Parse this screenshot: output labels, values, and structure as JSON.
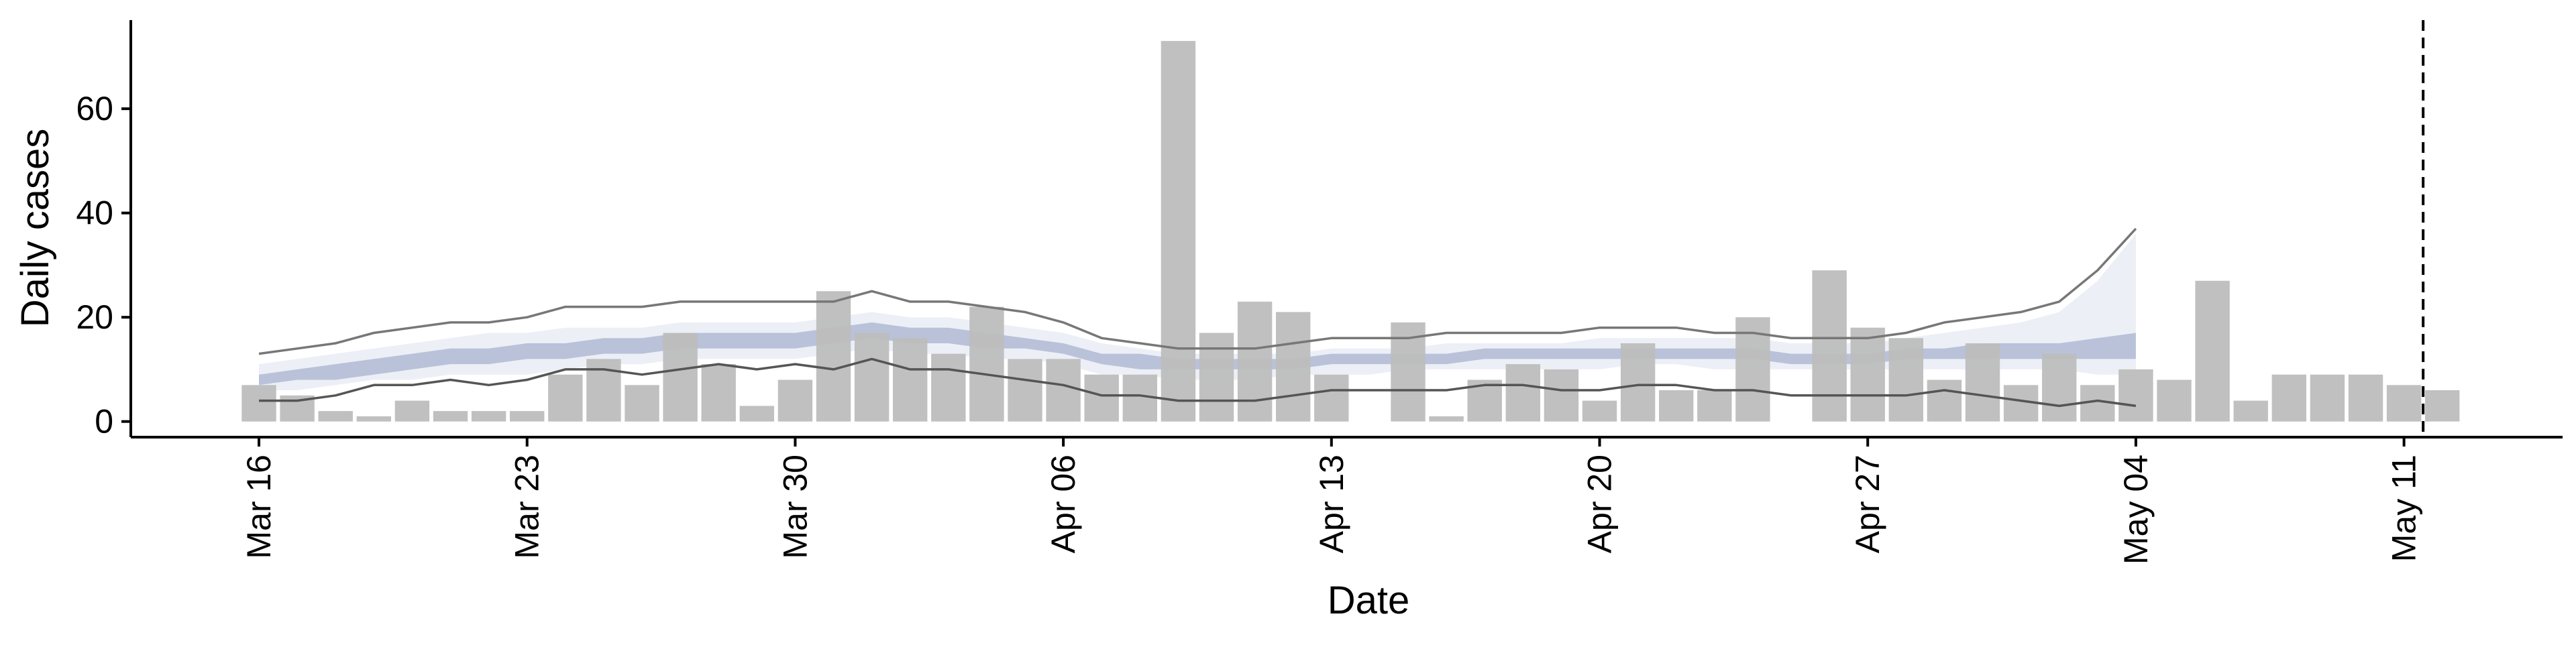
{
  "chart_data": {
    "type": "bar",
    "xlabel": "Date",
    "ylabel": "Daily cases",
    "ylim": [
      -3,
      77
    ],
    "yticks": [
      0,
      20,
      40,
      60
    ],
    "x_dates": [
      "2020-03-16",
      "2020-03-17",
      "2020-03-18",
      "2020-03-19",
      "2020-03-20",
      "2020-03-21",
      "2020-03-22",
      "2020-03-23",
      "2020-03-24",
      "2020-03-25",
      "2020-03-26",
      "2020-03-27",
      "2020-03-28",
      "2020-03-29",
      "2020-03-30",
      "2020-03-31",
      "2020-04-01",
      "2020-04-02",
      "2020-04-03",
      "2020-04-04",
      "2020-04-05",
      "2020-04-06",
      "2020-04-07",
      "2020-04-08",
      "2020-04-09",
      "2020-04-10",
      "2020-04-11",
      "2020-04-12",
      "2020-04-13",
      "2020-04-14",
      "2020-04-15",
      "2020-04-16",
      "2020-04-17",
      "2020-04-18",
      "2020-04-19",
      "2020-04-20",
      "2020-04-21",
      "2020-04-22",
      "2020-04-23",
      "2020-04-24",
      "2020-04-25",
      "2020-04-26",
      "2020-04-27",
      "2020-04-28",
      "2020-04-29",
      "2020-04-30",
      "2020-05-01",
      "2020-05-02",
      "2020-05-03",
      "2020-05-04",
      "2020-05-05",
      "2020-05-06",
      "2020-05-07",
      "2020-05-08",
      "2020-05-09",
      "2020-05-10",
      "2020-05-11",
      "2020-05-12"
    ],
    "x_tick_labels": [
      "Mar 16",
      "Mar 23",
      "Mar 30",
      "Apr 06",
      "Apr 13",
      "Apr 20",
      "Apr 27",
      "May 04",
      "May 11"
    ],
    "series": [
      {
        "kind": "bar",
        "color": "#bdbdbd",
        "values": [
          7,
          5,
          2,
          1,
          4,
          2,
          2,
          2,
          9,
          12,
          7,
          17,
          11,
          3,
          8,
          25,
          17,
          16,
          13,
          22,
          12,
          12,
          9,
          9,
          73,
          17,
          23,
          21,
          9,
          0,
          19,
          1,
          8,
          11,
          10,
          4,
          15,
          6,
          6,
          20,
          0,
          29,
          18,
          16,
          8,
          15,
          7,
          13,
          7,
          10,
          8,
          27,
          4,
          9,
          9,
          9,
          7,
          6
        ]
      },
      {
        "kind": "line",
        "role": "upper bound",
        "color": "#777777",
        "values": [
          13,
          14,
          15,
          17,
          18,
          19,
          19,
          20,
          22,
          22,
          22,
          23,
          23,
          23,
          23,
          23,
          25,
          23,
          23,
          22,
          21,
          19,
          16,
          15,
          14,
          14,
          14,
          15,
          16,
          16,
          16,
          17,
          17,
          17,
          17,
          18,
          18,
          18,
          17,
          17,
          16,
          16,
          16,
          17,
          19,
          20,
          21,
          23,
          29,
          37
        ]
      },
      {
        "kind": "line",
        "role": "lower bound",
        "color": "#555555",
        "values": [
          4,
          4,
          5,
          7,
          7,
          8,
          7,
          8,
          10,
          10,
          9,
          10,
          11,
          10,
          11,
          10,
          12,
          10,
          10,
          9,
          8,
          7,
          5,
          5,
          4,
          4,
          4,
          5,
          6,
          6,
          6,
          6,
          7,
          7,
          6,
          6,
          7,
          7,
          6,
          6,
          5,
          5,
          5,
          5,
          6,
          5,
          4,
          3,
          4,
          3
        ]
      },
      {
        "kind": "band",
        "role": "outer interval",
        "color": "#dde2ee",
        "lower": [
          6,
          6,
          7,
          8,
          8,
          9,
          9,
          9,
          10,
          11,
          11,
          12,
          12,
          12,
          12,
          13,
          14,
          13,
          13,
          12,
          12,
          11,
          9,
          9,
          8,
          8,
          8,
          9,
          9,
          9,
          10,
          10,
          10,
          10,
          10,
          10,
          11,
          11,
          10,
          10,
          10,
          10,
          10,
          10,
          10,
          10,
          10,
          10,
          9,
          9
        ],
        "upper": [
          11,
          12,
          13,
          14,
          15,
          16,
          17,
          17,
          18,
          18,
          18,
          19,
          19,
          19,
          19,
          20,
          21,
          20,
          20,
          19,
          18,
          17,
          15,
          14,
          13,
          13,
          13,
          13,
          14,
          14,
          14,
          15,
          15,
          15,
          15,
          16,
          16,
          16,
          16,
          16,
          15,
          15,
          15,
          16,
          17,
          18,
          19,
          21,
          27,
          36
        ]
      },
      {
        "kind": "band",
        "role": "inner interval",
        "color": "#a8b3cf",
        "lower": [
          7,
          8,
          8,
          9,
          10,
          11,
          11,
          12,
          12,
          13,
          13,
          14,
          14,
          14,
          14,
          15,
          16,
          15,
          15,
          14,
          14,
          13,
          11,
          10,
          10,
          10,
          10,
          10,
          11,
          11,
          11,
          11,
          12,
          12,
          12,
          12,
          12,
          12,
          12,
          12,
          11,
          11,
          11,
          12,
          12,
          12,
          12,
          12,
          12,
          12
        ],
        "upper": [
          9,
          10,
          11,
          12,
          13,
          14,
          14,
          15,
          15,
          16,
          16,
          17,
          17,
          17,
          17,
          18,
          19,
          18,
          18,
          17,
          16,
          15,
          13,
          13,
          12,
          12,
          12,
          12,
          13,
          13,
          13,
          13,
          14,
          14,
          14,
          14,
          14,
          14,
          14,
          14,
          13,
          13,
          13,
          14,
          14,
          15,
          15,
          15,
          16,
          17
        ]
      }
    ],
    "vline_date": "2020-05-12",
    "grid": false,
    "legend": "none"
  }
}
